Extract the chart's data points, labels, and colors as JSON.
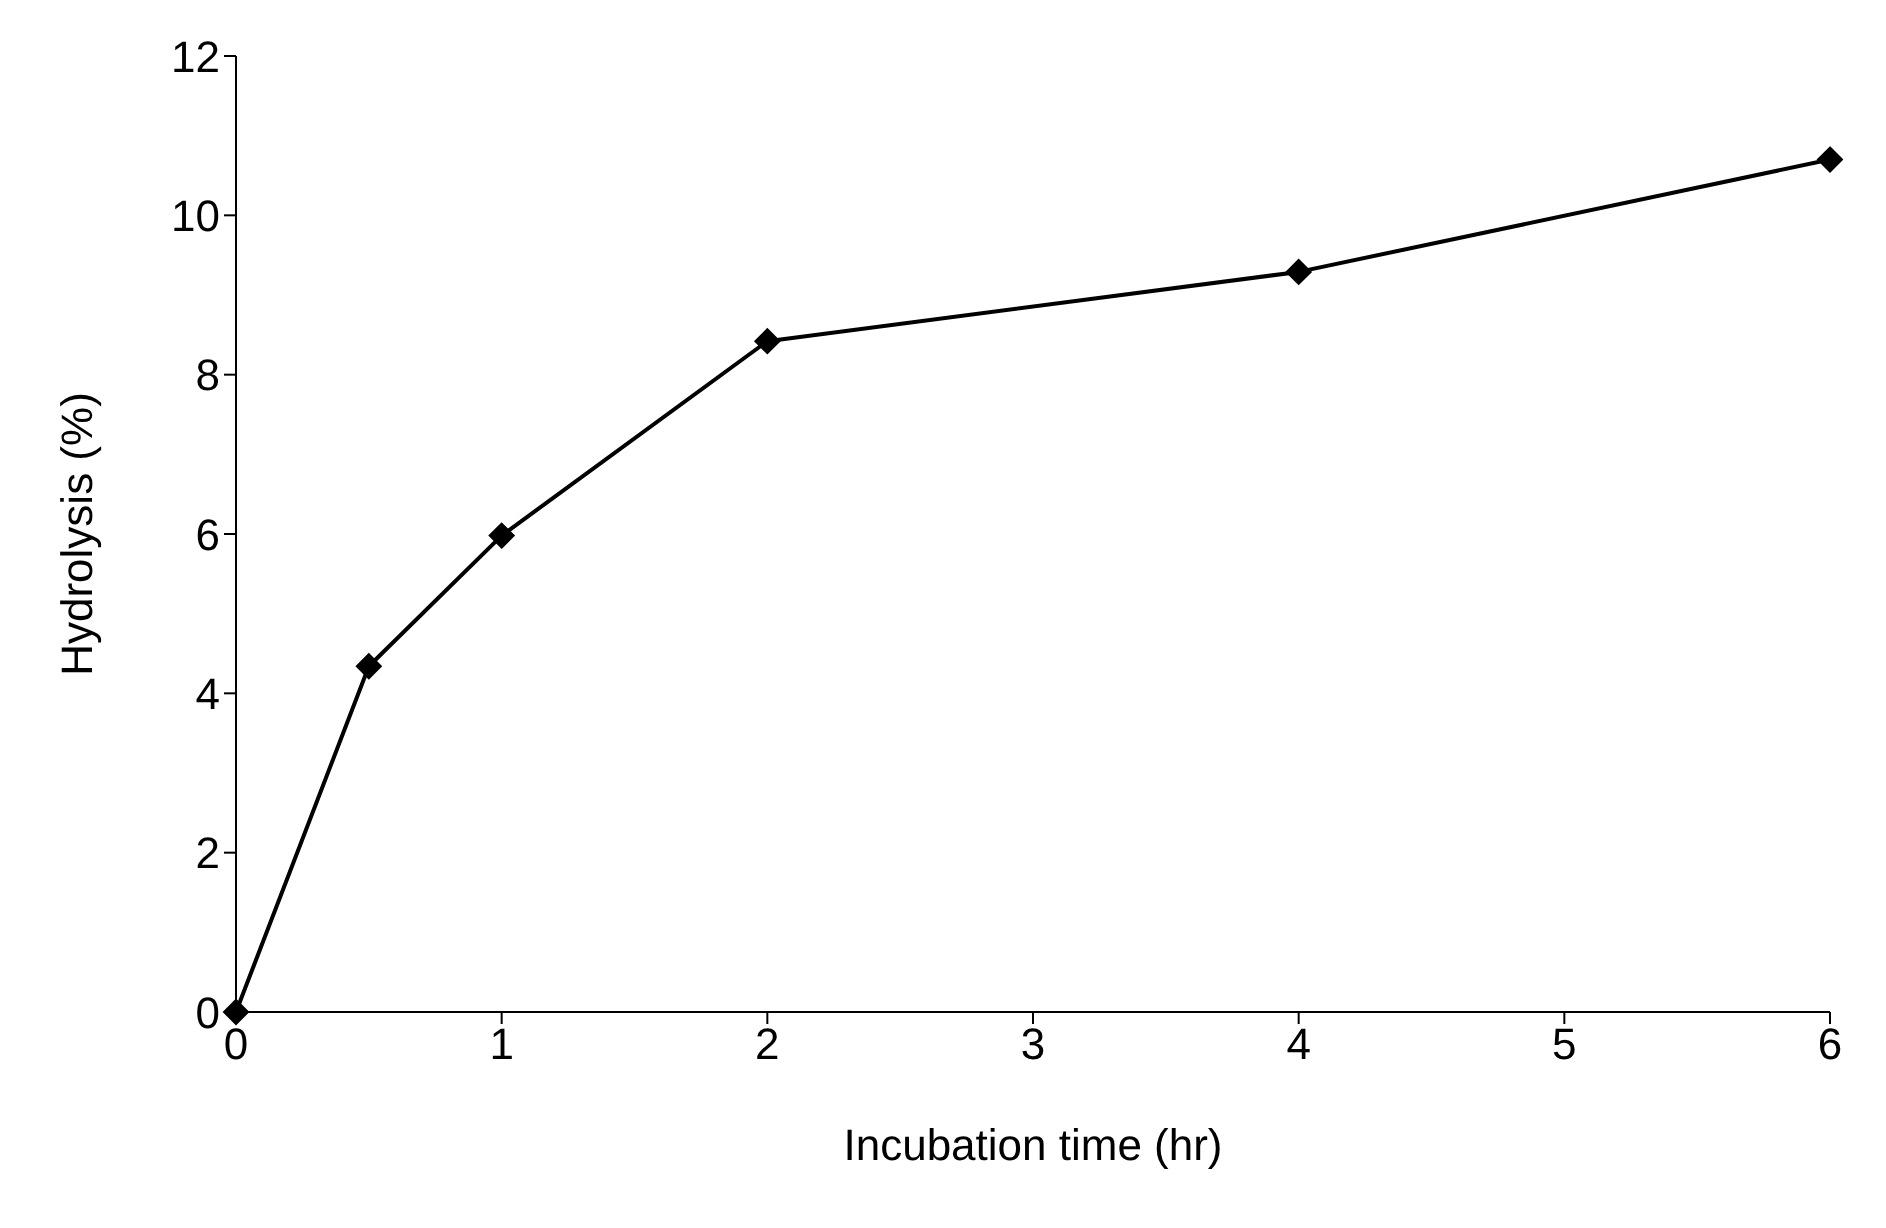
{
  "chart_data": {
    "type": "line",
    "xlabel": "Incubation time (hr)",
    "ylabel": "Hydrolysis (%)",
    "x": [
      0,
      0.5,
      1,
      2,
      4,
      6
    ],
    "series": [
      {
        "color": "#000000",
        "values": [
          0,
          4.34,
          5.98,
          8.42,
          9.29,
          10.7
        ]
      }
    ],
    "xlim": [
      0,
      6
    ],
    "xticks": [
      0,
      1,
      2,
      3,
      4,
      5,
      6
    ],
    "ylim": [
      0,
      12
    ],
    "yticks": [
      0,
      2,
      4,
      6,
      8,
      10,
      12
    ],
    "grid": false,
    "legend": false,
    "marker": "diamond",
    "line_style": "solid"
  }
}
